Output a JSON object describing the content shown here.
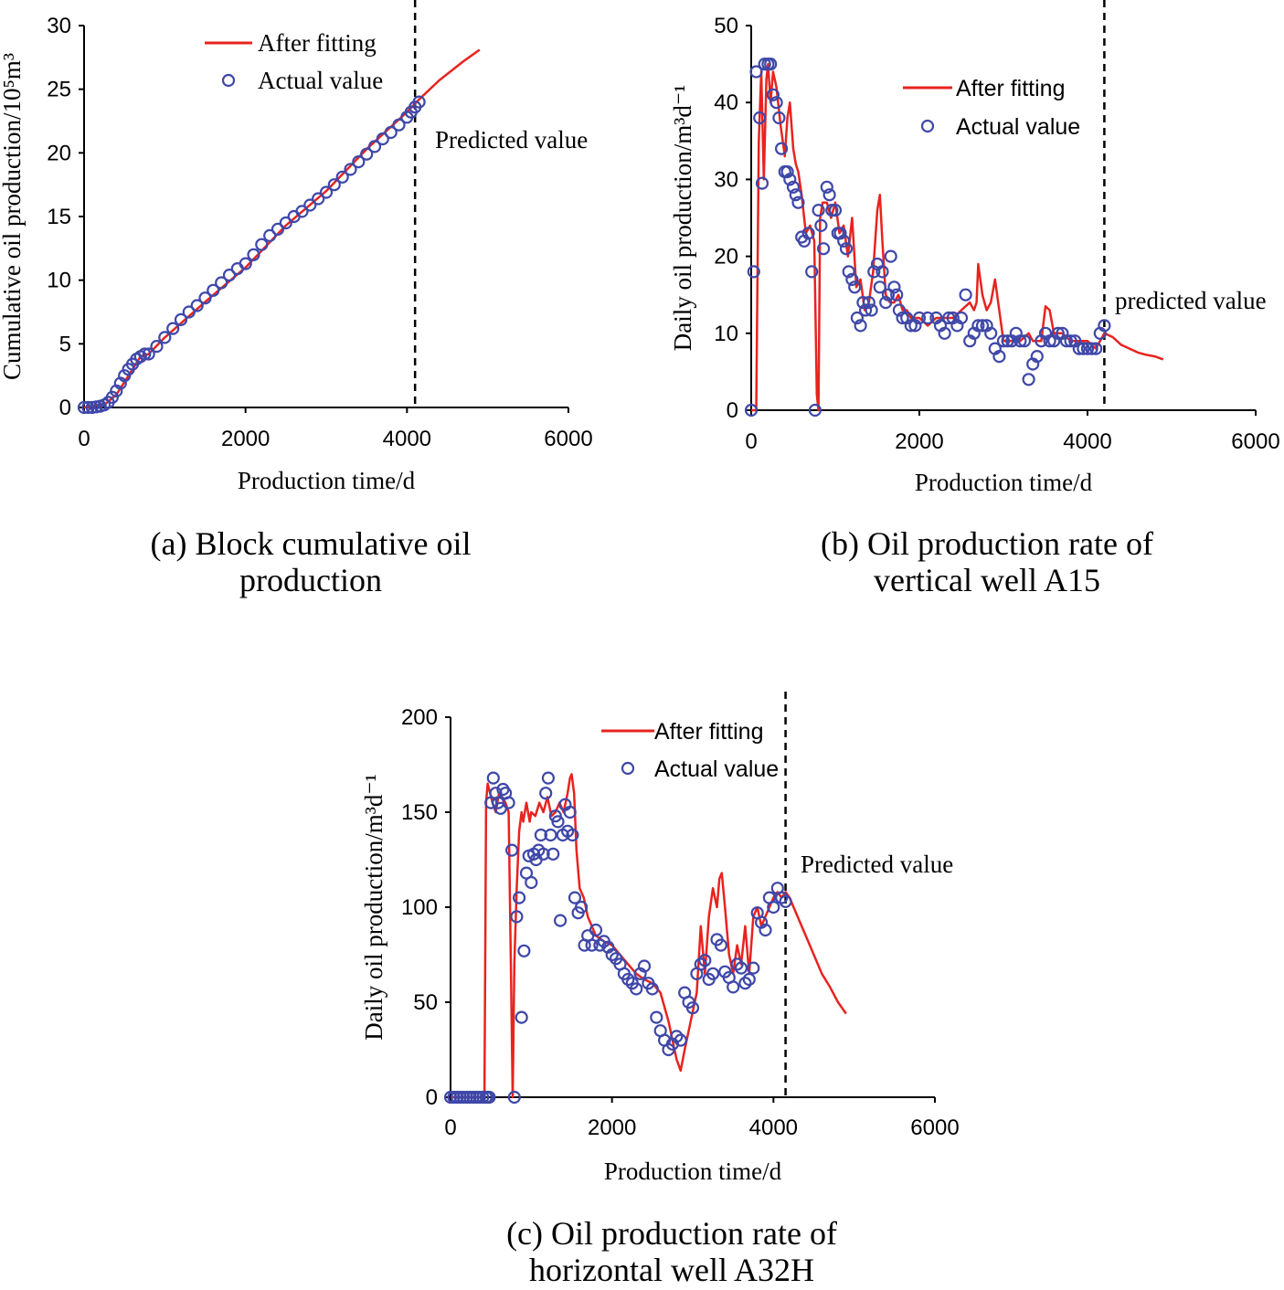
{
  "colors": {
    "fit_line": "#e8231f",
    "actual_marker": "#3f48a8",
    "axis": "#000000",
    "dashed": "#000000"
  },
  "chart_data": [
    {
      "id": "a",
      "type": "line",
      "caption": [
        "(a) Block cumulative oil",
        "production"
      ],
      "xlabel": "Production time/d",
      "ylabel": "Cumulative oil production/10⁵m³",
      "xlim": [
        0,
        6000
      ],
      "ylim": [
        0,
        30
      ],
      "xticks": [
        0,
        2000,
        4000,
        6000
      ],
      "yticks": [
        0,
        5,
        10,
        15,
        20,
        25,
        30
      ],
      "legend": {
        "fit": "After fitting",
        "actual": "Actual value",
        "position": "top-center"
      },
      "predicted_label": "Predicted value",
      "divider_x": 4100,
      "series": [
        {
          "name": "After fitting",
          "x": [
            0,
            250,
            400,
            600,
            700,
            800,
            1000,
            1500,
            2000,
            2500,
            3000,
            3500,
            4000,
            4150,
            4400,
            4700,
            4900
          ],
          "y": [
            0,
            0.2,
            1.0,
            3.0,
            4.0,
            4.2,
            5.5,
            8.3,
            11.0,
            14.3,
            17.0,
            20.3,
            23.2,
            24.2,
            25.7,
            27.2,
            28.1
          ]
        },
        {
          "name": "Actual value",
          "x": [
            0,
            50,
            100,
            150,
            200,
            250,
            300,
            350,
            400,
            450,
            500,
            550,
            600,
            650,
            700,
            750,
            800,
            900,
            1000,
            1100,
            1200,
            1300,
            1400,
            1500,
            1600,
            1700,
            1800,
            1900,
            2000,
            2100,
            2200,
            2300,
            2400,
            2500,
            2600,
            2700,
            2800,
            2900,
            3000,
            3100,
            3200,
            3300,
            3400,
            3500,
            3600,
            3700,
            3800,
            3900,
            4000,
            4050,
            4100,
            4150
          ],
          "y": [
            0,
            0,
            0,
            0.05,
            0.1,
            0.2,
            0.4,
            0.8,
            1.3,
            1.9,
            2.5,
            3.0,
            3.4,
            3.8,
            4.0,
            4.2,
            4.2,
            4.8,
            5.5,
            6.2,
            6.9,
            7.5,
            8.0,
            8.6,
            9.2,
            9.8,
            10.4,
            10.9,
            11.3,
            12.0,
            12.8,
            13.5,
            14.0,
            14.5,
            15.0,
            15.4,
            15.9,
            16.4,
            16.9,
            17.5,
            18.1,
            18.7,
            19.3,
            19.9,
            20.5,
            21.1,
            21.6,
            22.2,
            22.8,
            23.2,
            23.6,
            24.0
          ]
        }
      ]
    },
    {
      "id": "b",
      "type": "line",
      "caption": [
        "(b) Oil production rate of",
        "vertical well A15"
      ],
      "xlabel": "Production time/d",
      "ylabel": "Daily oil production/m³d⁻¹",
      "xlim": [
        0,
        6000
      ],
      "ylim": [
        0,
        50
      ],
      "xticks": [
        0,
        2000,
        4000,
        6000
      ],
      "yticks": [
        0,
        10,
        20,
        30,
        40,
        50
      ],
      "legend": {
        "fit": "After fitting",
        "actual": "Actual value",
        "position": "top-right"
      },
      "predicted_label": "predicted value",
      "divider_x": 4200,
      "series": [
        {
          "name": "After fitting",
          "x": [
            0,
            60,
            90,
            120,
            150,
            180,
            200,
            230,
            260,
            300,
            350,
            400,
            430,
            460,
            500,
            530,
            560,
            600,
            650,
            700,
            750,
            780,
            800,
            820,
            850,
            900,
            950,
            1000,
            1050,
            1100,
            1150,
            1200,
            1250,
            1300,
            1350,
            1400,
            1450,
            1500,
            1530,
            1560,
            1600,
            1650,
            1700,
            1750,
            1800,
            1850,
            1900,
            2000,
            2100,
            2200,
            2300,
            2400,
            2500,
            2600,
            2650,
            2680,
            2700,
            2750,
            2800,
            2850,
            2900,
            2950,
            3000,
            3050,
            3100,
            3200,
            3300,
            3350,
            3400,
            3450,
            3500,
            3550,
            3600,
            3700,
            3800,
            3900,
            4000,
            4100,
            4200,
            4300,
            4400,
            4500,
            4600,
            4700,
            4800,
            4900
          ],
          "y": [
            0,
            0,
            35,
            44,
            30,
            43,
            45,
            40,
            44,
            42,
            37,
            33,
            38,
            40,
            34,
            32,
            31,
            28,
            23,
            24,
            22,
            2,
            0,
            25,
            27,
            27,
            25,
            27,
            23,
            24,
            20,
            25,
            16,
            17,
            13,
            14,
            18,
            26,
            28,
            22,
            15,
            14,
            14,
            15,
            13,
            13,
            12,
            12,
            11,
            12,
            12,
            12,
            13,
            14,
            13,
            14,
            19,
            15,
            13,
            14,
            17,
            13,
            9,
            9,
            9,
            9,
            10,
            9,
            9,
            9,
            13.5,
            13,
            10,
            10,
            9,
            9,
            9,
            8,
            10,
            9.5,
            8.5,
            8,
            7.5,
            7.2,
            7,
            6.6
          ]
        },
        {
          "name": "Actual value",
          "x": [
            0,
            30,
            60,
            100,
            130,
            160,
            200,
            230,
            260,
            300,
            330,
            360,
            400,
            430,
            460,
            500,
            530,
            560,
            600,
            630,
            680,
            720,
            760,
            800,
            830,
            860,
            900,
            930,
            960,
            1000,
            1030,
            1060,
            1100,
            1130,
            1160,
            1200,
            1230,
            1260,
            1300,
            1330,
            1360,
            1400,
            1430,
            1460,
            1500,
            1530,
            1560,
            1600,
            1630,
            1660,
            1700,
            1730,
            1760,
            1800,
            1850,
            1900,
            1950,
            2000,
            2100,
            2200,
            2250,
            2300,
            2350,
            2400,
            2450,
            2500,
            2550,
            2600,
            2650,
            2700,
            2750,
            2800,
            2850,
            2900,
            2950,
            3000,
            3050,
            3100,
            3150,
            3200,
            3250,
            3300,
            3350,
            3400,
            3450,
            3500,
            3550,
            3600,
            3650,
            3700,
            3750,
            3800,
            3850,
            3900,
            3950,
            4000,
            4050,
            4100,
            4150,
            4200
          ],
          "y": [
            0,
            18,
            44,
            38,
            29.5,
            45,
            45,
            45,
            41,
            40,
            38,
            34,
            31,
            31,
            30,
            29,
            28,
            27,
            22.5,
            22,
            23,
            18,
            0,
            26,
            24,
            21,
            29,
            28,
            26,
            26,
            23,
            23,
            22,
            21,
            18,
            17,
            16,
            12,
            11,
            14,
            13,
            14,
            13,
            18,
            19,
            16,
            18,
            14,
            15,
            20,
            16,
            15,
            13,
            12,
            12,
            11,
            11,
            12,
            12,
            12,
            11,
            10,
            12,
            12,
            11,
            12,
            15,
            9,
            10,
            11,
            11,
            11,
            10,
            8,
            7,
            9,
            9,
            9,
            10,
            9,
            9,
            4,
            6,
            7,
            9,
            10,
            9,
            9,
            10,
            10,
            9,
            9,
            9,
            8,
            8,
            8,
            8,
            8,
            10,
            11
          ]
        }
      ]
    },
    {
      "id": "c",
      "type": "line",
      "caption": [
        "(c) Oil production rate of",
        "horizontal well A32H"
      ],
      "xlabel": "Production time/d",
      "ylabel": "Daily oil production/m³d⁻¹",
      "xlim": [
        0,
        6000
      ],
      "ylim": [
        0,
        200
      ],
      "xticks": [
        0,
        2000,
        4000,
        6000
      ],
      "yticks": [
        0,
        50,
        100,
        150,
        200
      ],
      "legend": {
        "fit": "After fitting",
        "actual": "Actual value",
        "position": "top-right"
      },
      "predicted_label": "Predicted value",
      "divider_x": 4150,
      "series": [
        {
          "name": "After fitting",
          "x": [
            0,
            420,
            440,
            460,
            490,
            520,
            560,
            600,
            640,
            680,
            720,
            750,
            770,
            790,
            820,
            850,
            880,
            900,
            940,
            980,
            1000,
            1050,
            1100,
            1150,
            1200,
            1250,
            1300,
            1350,
            1400,
            1450,
            1480,
            1500,
            1530,
            1560,
            1600,
            1650,
            1700,
            1800,
            1900,
            2000,
            2100,
            2200,
            2300,
            2400,
            2500,
            2600,
            2700,
            2750,
            2800,
            2850,
            2900,
            2950,
            3000,
            3050,
            3100,
            3150,
            3200,
            3250,
            3300,
            3330,
            3360,
            3400,
            3450,
            3500,
            3550,
            3600,
            3650,
            3700,
            3750,
            3800,
            3850,
            3900,
            3950,
            4000,
            4050,
            4100,
            4150,
            4200,
            4300,
            4400,
            4500,
            4600,
            4700,
            4800,
            4900
          ],
          "y": [
            0,
            0,
            155,
            165,
            160,
            155,
            150,
            160,
            158,
            155,
            150,
            60,
            0,
            70,
            110,
            140,
            150,
            145,
            155,
            145,
            150,
            148,
            155,
            150,
            158,
            148,
            150,
            155,
            150,
            160,
            168,
            170,
            160,
            130,
            110,
            105,
            95,
            85,
            82,
            80,
            75,
            70,
            65,
            62,
            60,
            55,
            40,
            30,
            20,
            14,
            25,
            35,
            45,
            55,
            90,
            65,
            95,
            110,
            100,
            115,
            118,
            100,
            75,
            65,
            80,
            70,
            90,
            65,
            95,
            100,
            90,
            95,
            100,
            105,
            108,
            105,
            108,
            105,
            95,
            85,
            75,
            65,
            58,
            50,
            44
          ]
        },
        {
          "name": "Actual value",
          "x": [
            0,
            40,
            80,
            120,
            160,
            200,
            240,
            280,
            320,
            360,
            400,
            440,
            460,
            480,
            500,
            530,
            560,
            590,
            620,
            650,
            680,
            720,
            760,
            790,
            820,
            850,
            880,
            910,
            940,
            970,
            1000,
            1030,
            1060,
            1090,
            1120,
            1150,
            1180,
            1210,
            1240,
            1270,
            1300,
            1330,
            1360,
            1390,
            1420,
            1450,
            1480,
            1510,
            1540,
            1580,
            1620,
            1660,
            1700,
            1750,
            1800,
            1850,
            1900,
            1950,
            2000,
            2050,
            2100,
            2150,
            2200,
            2250,
            2300,
            2350,
            2400,
            2450,
            2500,
            2550,
            2600,
            2650,
            2700,
            2750,
            2800,
            2850,
            2900,
            2950,
            3000,
            3050,
            3100,
            3150,
            3200,
            3250,
            3300,
            3350,
            3400,
            3450,
            3500,
            3550,
            3600,
            3650,
            3700,
            3750,
            3800,
            3850,
            3900,
            3950,
            4000,
            4050,
            4100,
            4150
          ],
          "y": [
            0,
            0,
            0,
            0,
            0,
            0,
            0,
            0,
            0,
            0,
            0,
            0,
            0,
            0,
            155,
            168,
            160,
            155,
            152,
            162,
            160,
            155,
            130,
            0,
            95,
            105,
            42,
            77,
            118,
            127,
            113,
            128,
            125,
            130,
            138,
            128,
            160,
            168,
            138,
            128,
            148,
            145,
            93,
            138,
            154,
            140,
            150,
            138,
            105,
            97,
            100,
            80,
            85,
            80,
            88,
            80,
            82,
            79,
            75,
            73,
            70,
            65,
            62,
            60,
            57,
            65,
            69,
            60,
            57,
            42,
            35,
            30,
            25,
            28,
            32,
            30,
            55,
            50,
            47,
            65,
            70,
            72,
            62,
            65,
            83,
            80,
            66,
            63,
            58,
            70,
            68,
            60,
            62,
            68,
            97,
            92,
            88,
            105,
            100,
            110,
            105,
            103
          ]
        }
      ]
    }
  ]
}
